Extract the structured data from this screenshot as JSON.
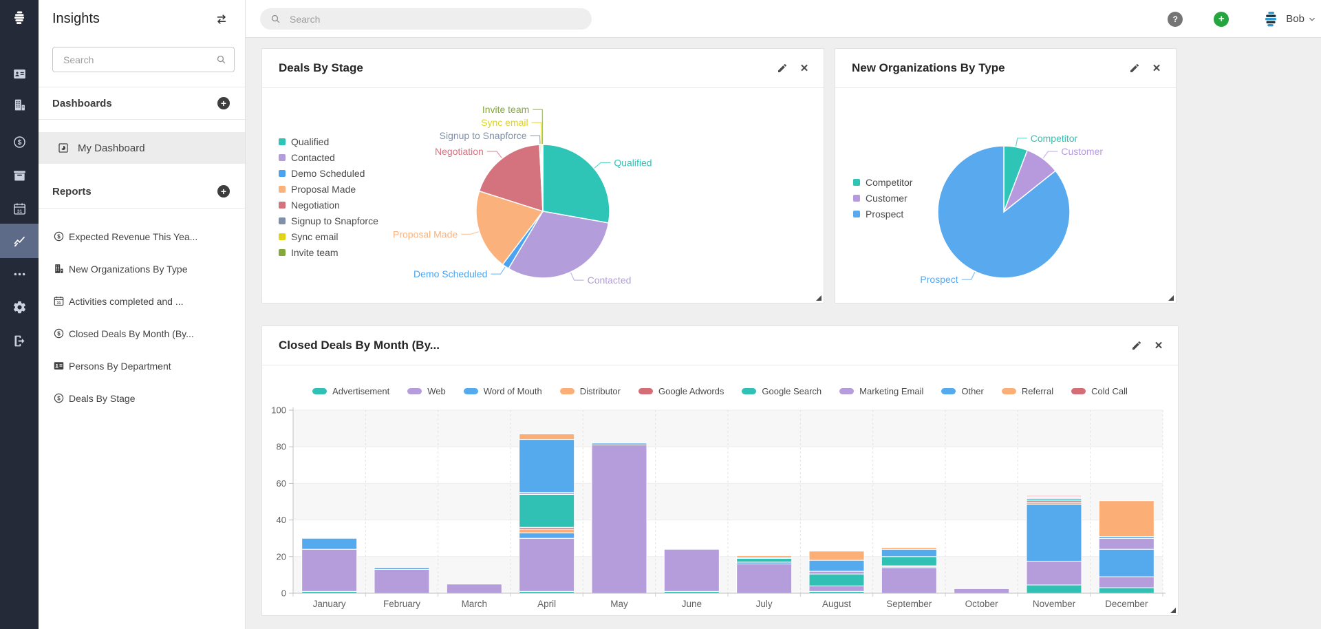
{
  "rail": {
    "items": [
      {
        "icon": "snapforce-logo",
        "active": false
      },
      {
        "icon": "contacts-badge",
        "active": false
      },
      {
        "icon": "organizations-building",
        "active": false
      },
      {
        "icon": "deals-dollar",
        "active": false
      },
      {
        "icon": "archive-box",
        "active": false
      },
      {
        "icon": "calendar",
        "active": false
      },
      {
        "icon": "insights-chart",
        "active": true
      },
      {
        "icon": "more-ellipsis",
        "active": false
      },
      {
        "icon": "settings-gear",
        "active": false
      },
      {
        "icon": "logout",
        "active": false
      }
    ]
  },
  "sidebar": {
    "title": "Insights",
    "search": {
      "placeholder": "Search"
    },
    "dashboards_heading": "Dashboards",
    "dashboard_items": [
      {
        "icon": "dashboard",
        "label": "My Dashboard",
        "selected": true
      }
    ],
    "reports_heading": "Reports",
    "report_items": [
      {
        "icon": "deals-dollar",
        "label": "Expected Revenue This Yea..."
      },
      {
        "icon": "organizations-building",
        "label": "New Organizations By Type"
      },
      {
        "icon": "calendar",
        "label": "Activities completed and ..."
      },
      {
        "icon": "deals-dollar",
        "label": "Closed Deals By Month (By..."
      },
      {
        "icon": "contacts-badge",
        "label": "Persons By Department"
      },
      {
        "icon": "deals-dollar",
        "label": "Deals By Stage"
      }
    ]
  },
  "topbar": {
    "search_placeholder": "Search",
    "help_glyph": "?",
    "add_glyph": "+",
    "user": {
      "name": "Bob"
    }
  },
  "cards": [
    {
      "title": "Deals By Stage"
    },
    {
      "title": "New Organizations By Type"
    },
    {
      "title": "Closed Deals By Month (By..."
    }
  ],
  "chart_data": [
    {
      "type": "pie",
      "title": "Deals By Stage",
      "labels": [
        "Qualified",
        "Contacted",
        "Demo Scheduled",
        "Proposal Made",
        "Negotiation",
        "Signup to Snapforce",
        "Sync email",
        "Invite team"
      ],
      "values": [
        27.8,
        30.8,
        1.7,
        19.6,
        19.3,
        0.3,
        0.3,
        0.2
      ],
      "units": "percent",
      "colors": [
        "#2ec4b6",
        "#b39ddb",
        "#4aa3f0",
        "#fbb17c",
        "#d4737e",
        "#8090a8",
        "#e0d416",
        "#85a83b"
      ],
      "legend_position": "left",
      "grid": false
    },
    {
      "type": "pie",
      "title": "New Organizations By Type",
      "labels": [
        "Competitor",
        "Customer",
        "Prospect"
      ],
      "values": [
        5.8,
        8.5,
        85.7
      ],
      "units": "percent",
      "colors": [
        "#2ec4b6",
        "#b79ade",
        "#58a9ee"
      ],
      "legend_position": "left",
      "grid": false
    },
    {
      "type": "bar",
      "stacked": true,
      "title": "Closed Deals By Month (By...",
      "categories": [
        "January",
        "February",
        "March",
        "April",
        "May",
        "June",
        "July",
        "August",
        "September",
        "October",
        "November",
        "December"
      ],
      "series": [
        {
          "name": "Advertisement",
          "color": "#30c1b4",
          "values": [
            1,
            0,
            0,
            1,
            0,
            1,
            0,
            1,
            0,
            0,
            4.5,
            3
          ]
        },
        {
          "name": "Web",
          "color": "#b49dda",
          "values": [
            23,
            13,
            5,
            29,
            81,
            23,
            16,
            3,
            14,
            2.5,
            13,
            6
          ]
        },
        {
          "name": "Word of Mouth",
          "color": "#55aaee",
          "values": [
            6,
            1,
            0,
            3,
            1,
            0,
            1,
            0,
            0.5,
            0,
            31,
            15
          ]
        },
        {
          "name": "Distributor",
          "color": "#fbaf77",
          "values": [
            0,
            0,
            0,
            2,
            0,
            0,
            0,
            0,
            0,
            0,
            1,
            0
          ]
        },
        {
          "name": "Google Adwords",
          "color": "#d56d77",
          "values": [
            0,
            0,
            0,
            1,
            0,
            0,
            0,
            0,
            0.5,
            0,
            1,
            0
          ]
        },
        {
          "name": "Google Search",
          "color": "#30c1b4",
          "values": [
            0,
            0,
            0,
            18,
            0,
            0,
            2,
            6.5,
            5,
            0,
            1,
            0
          ]
        },
        {
          "name": "Marketing Email",
          "color": "#b49dda",
          "values": [
            0,
            0,
            0,
            1,
            0,
            0,
            0,
            1.5,
            0,
            0,
            0.5,
            6
          ]
        },
        {
          "name": "Other",
          "color": "#55aaee",
          "values": [
            0,
            0,
            0,
            29,
            0,
            0,
            0.5,
            6,
            4,
            0,
            0.5,
            1
          ]
        },
        {
          "name": "Referral",
          "color": "#fbaf77",
          "values": [
            0,
            0,
            0,
            3,
            0,
            0,
            1,
            5,
            1,
            0,
            0.5,
            19.5
          ]
        },
        {
          "name": "Cold Call",
          "color": "#d56d77",
          "values": [
            0,
            0,
            0,
            0,
            0,
            0,
            0,
            0,
            0,
            0,
            0.5,
            0
          ]
        }
      ],
      "xlabel": "",
      "ylabel": "",
      "ylim": [
        0,
        100
      ],
      "yticks": [
        0,
        20,
        40,
        60,
        80,
        100
      ],
      "grid": true,
      "legend_position": "top"
    }
  ]
}
